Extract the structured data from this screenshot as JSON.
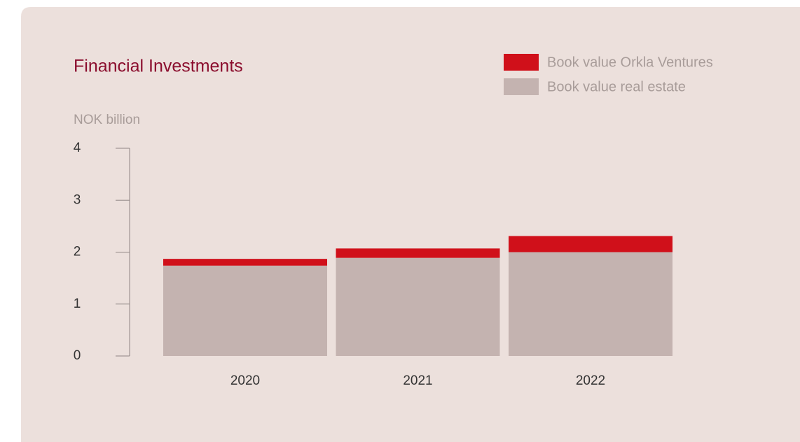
{
  "chart_data": {
    "type": "stacked_bar",
    "title": "Financial Investments",
    "y_axis_label": "NOK billion",
    "categories": [
      "2020",
      "2021",
      "2022"
    ],
    "series": [
      {
        "name": "Book value real estate",
        "color": "#c4b3b0",
        "values": [
          1.74,
          1.89,
          2.0
        ]
      },
      {
        "name": "Book value Orkla Ventures",
        "color": "#d0101a",
        "values": [
          0.13,
          0.18,
          0.31
        ]
      }
    ],
    "ylim": [
      0,
      4
    ],
    "yticks": [
      0,
      1,
      2,
      3,
      4
    ],
    "legend": "top-right"
  }
}
